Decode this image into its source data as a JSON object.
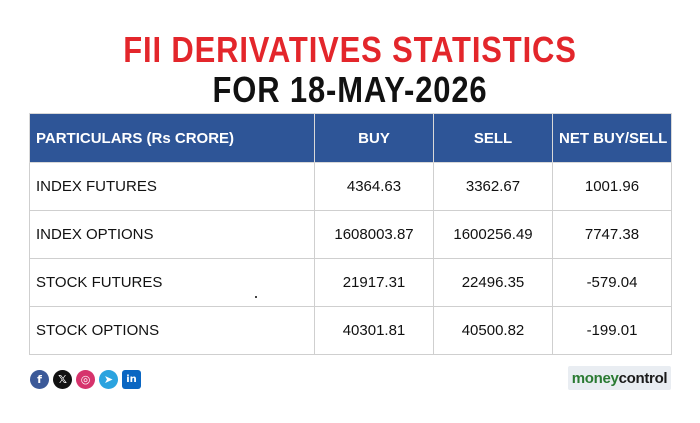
{
  "title": {
    "line1": "FII DERIVATIVES STATISTICS",
    "line2": "FOR 18-MAY-2026"
  },
  "table": {
    "headers": [
      "PARTICULARS (Rs CRORE)",
      "BUY",
      "SELL",
      "NET BUY/SELL"
    ],
    "rows": [
      [
        "INDEX FUTURES",
        "4364.63",
        "3362.67",
        "1001.96"
      ],
      [
        "INDEX OPTIONS",
        "1608003.87",
        "1600256.49",
        "7747.38"
      ],
      [
        "STOCK FUTURES",
        "21917.31",
        "22496.35",
        "-579.04"
      ],
      [
        "STOCK OPTIONS",
        "40301.81",
        "40500.82",
        "-199.01"
      ]
    ]
  },
  "social": {
    "icons": [
      "facebook-icon",
      "x-icon",
      "instagram-icon",
      "telegram-icon",
      "linkedin-icon"
    ]
  },
  "logo": {
    "part1": "money",
    "part2": "control"
  },
  "colors": {
    "title_red": "#e3262b",
    "header_blue": "#2e5597",
    "logo_green": "#2a7a32"
  }
}
